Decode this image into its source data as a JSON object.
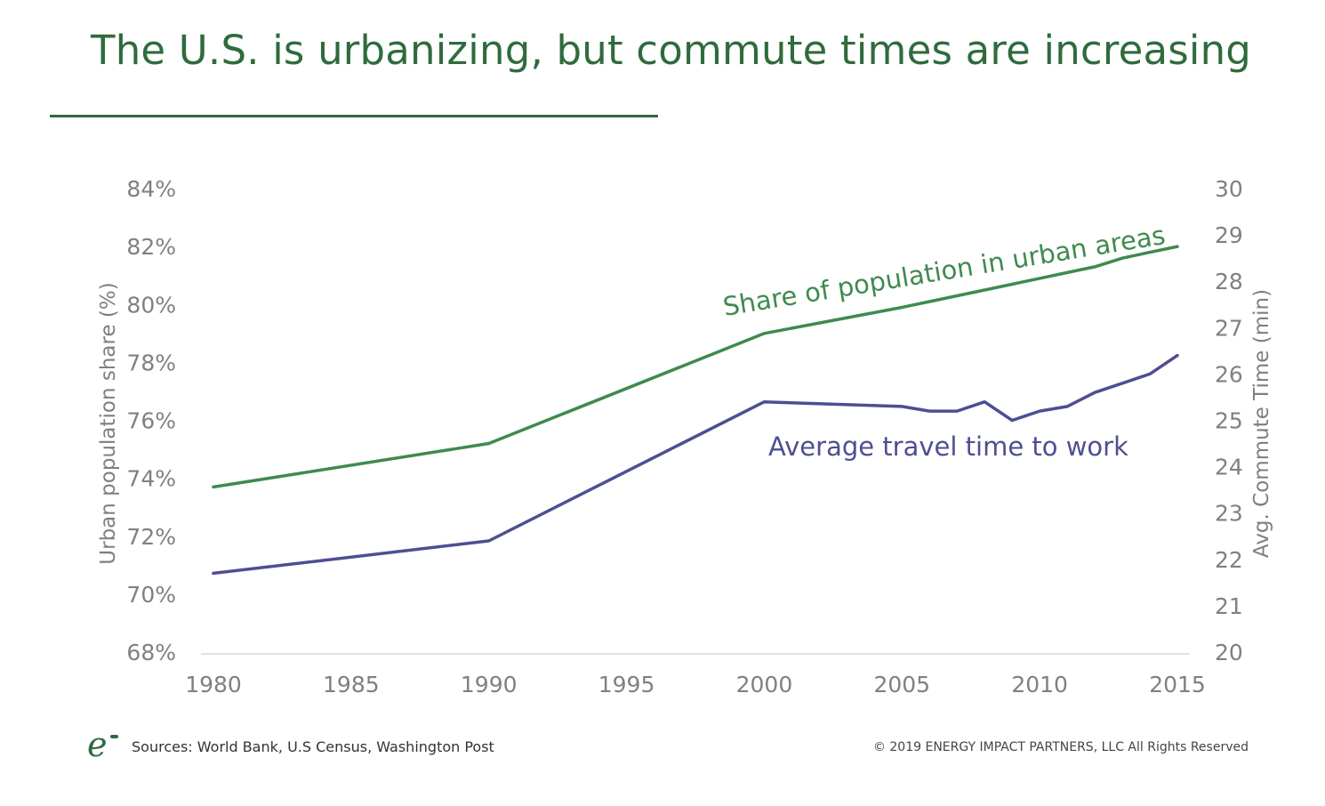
{
  "title": "The U.S. is urbanizing, but commute times are increasing",
  "colors": {
    "title": "#2f6b3d",
    "rule": "#2f6b3d",
    "urban_series": "#3f8a4f",
    "commute_series": "#4e4e92",
    "tick": "#808080",
    "axis_line": "#d9d9d9"
  },
  "chart_data": {
    "type": "line",
    "x_ticks": [
      "1980",
      "1985",
      "1990",
      "1995",
      "2000",
      "2005",
      "2010",
      "2015"
    ],
    "xlim": [
      1980,
      2015
    ],
    "y_left": {
      "label": "Urban population share (%)",
      "ylim": [
        68,
        84
      ],
      "ticks": [
        "68%",
        "70%",
        "72%",
        "74%",
        "76%",
        "78%",
        "80%",
        "82%",
        "84%"
      ]
    },
    "y_right": {
      "label": "Avg. Commute Time (min)",
      "ylim": [
        20,
        30
      ],
      "ticks": [
        "20",
        "21",
        "22",
        "23",
        "24",
        "25",
        "26",
        "27",
        "28",
        "29",
        "30"
      ]
    },
    "grid": false,
    "series": [
      {
        "name": "Share of population in urban areas",
        "axis": "left",
        "color": "#3f8a4f",
        "x": [
          1980,
          1990,
          2000,
          2005,
          2006,
          2007,
          2008,
          2009,
          2010,
          2011,
          2012,
          2013,
          2014,
          2015
        ],
        "values": [
          73.7,
          75.2,
          79.0,
          79.9,
          80.1,
          80.3,
          80.5,
          80.7,
          80.9,
          81.1,
          81.3,
          81.6,
          81.8,
          82.0
        ]
      },
      {
        "name": "Average travel time to work",
        "axis": "right",
        "color": "#4e4e92",
        "x": [
          1980,
          1990,
          2000,
          2005,
          2006,
          2007,
          2008,
          2009,
          2010,
          2011,
          2012,
          2013,
          2014,
          2015
        ],
        "values": [
          21.7,
          22.4,
          25.4,
          25.3,
          25.2,
          25.2,
          25.4,
          25.0,
          25.2,
          25.3,
          25.6,
          25.8,
          26.0,
          26.4
        ]
      }
    ]
  },
  "footer": {
    "logo_text": "e",
    "source": "Sources: World Bank, U.S Census, Washington Post",
    "copyright": "© 2019 ENERGY IMPACT PARTNERS, LLC All Rights Reserved"
  }
}
